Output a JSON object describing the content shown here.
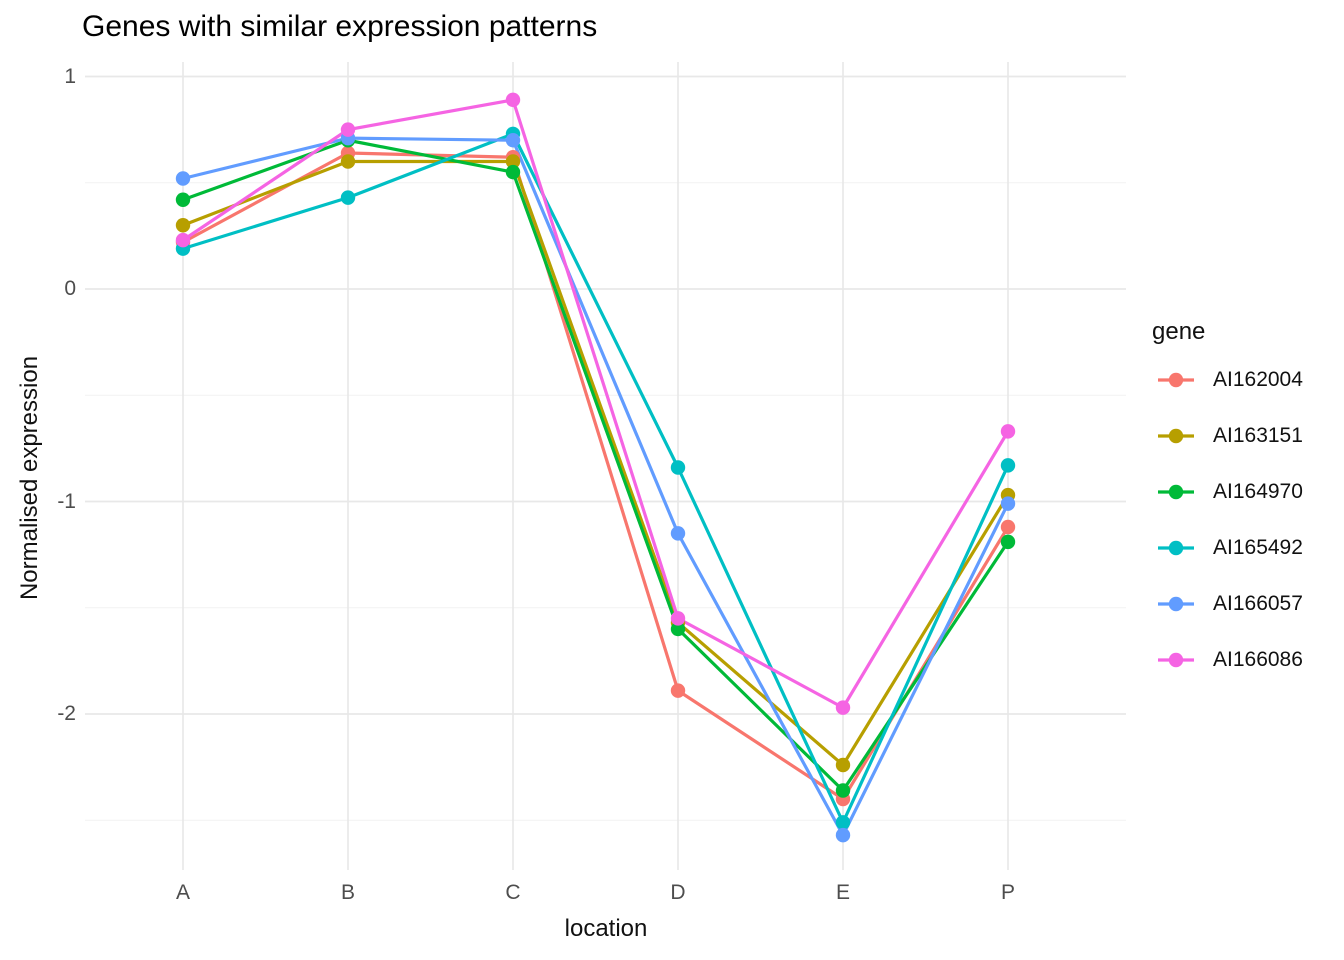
{
  "chart_data": {
    "type": "line",
    "title": "Genes with similar expression patterns",
    "xlabel": "location",
    "ylabel": "Normalised expression",
    "categories": [
      "A",
      "B",
      "C",
      "D",
      "E",
      "P"
    ],
    "y_axis": {
      "ticks": [
        1,
        0,
        -1,
        -2
      ],
      "minor_ticks": [
        0.5,
        -0.5,
        -1.5,
        -2.5
      ],
      "range": [
        -2.73,
        1.07
      ]
    },
    "grid": {
      "show": true,
      "major_color": "#e8e8e8",
      "minor_color": "#f2f2f2"
    },
    "background_color": "#ffffff",
    "legend": {
      "title": "gene",
      "position": "right"
    },
    "series": [
      {
        "name": "AI162004",
        "color": "#F8766D",
        "values": [
          0.22,
          0.64,
          0.62,
          -1.89,
          -2.4,
          -1.12
        ]
      },
      {
        "name": "AI163151",
        "color": "#B79F00",
        "values": [
          0.3,
          0.6,
          0.6,
          -1.57,
          -2.24,
          -0.97
        ]
      },
      {
        "name": "AI164970",
        "color": "#00BA38",
        "values": [
          0.42,
          0.7,
          0.55,
          -1.6,
          -2.36,
          -1.19
        ]
      },
      {
        "name": "AI165492",
        "color": "#00BFC4",
        "values": [
          0.19,
          0.43,
          0.73,
          -0.84,
          -2.51,
          -0.83
        ]
      },
      {
        "name": "AI166057",
        "color": "#619CFF",
        "values": [
          0.52,
          0.71,
          0.7,
          -1.15,
          -2.57,
          -1.01
        ]
      },
      {
        "name": "AI166086",
        "color": "#F564E3",
        "values": [
          0.23,
          0.75,
          0.89,
          -1.55,
          -1.97,
          -0.67
        ]
      }
    ]
  }
}
